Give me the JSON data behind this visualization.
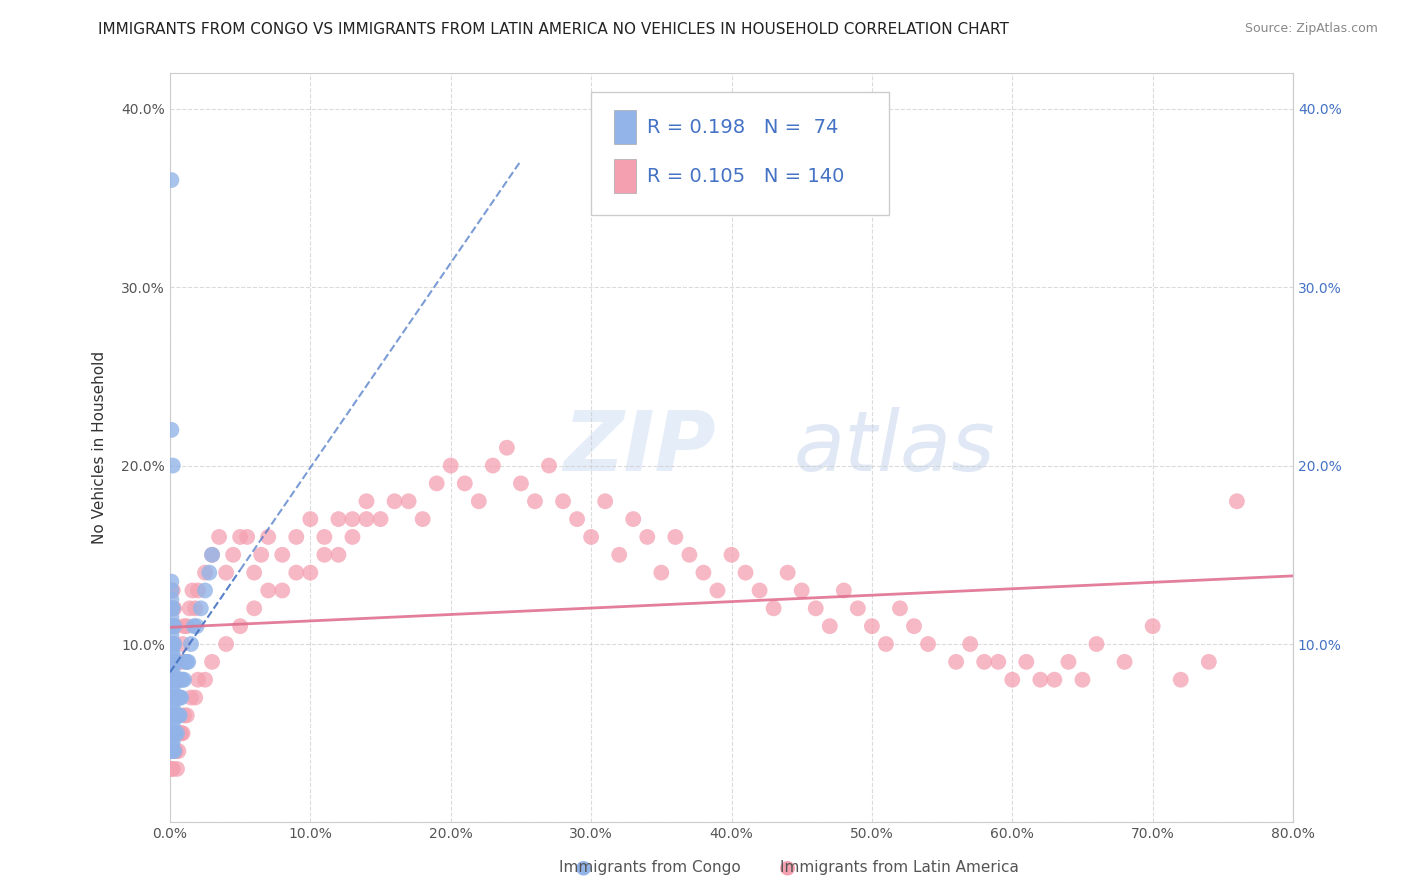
{
  "title": "IMMIGRANTS FROM CONGO VS IMMIGRANTS FROM LATIN AMERICA NO VEHICLES IN HOUSEHOLD CORRELATION CHART",
  "source": "Source: ZipAtlas.com",
  "xlabel_bottom": [
    "Immigrants from Congo",
    "Immigrants from Latin America"
  ],
  "ylabel": "No Vehicles in Household",
  "xlim": [
    0.0,
    0.8
  ],
  "ylim": [
    0.0,
    0.42
  ],
  "xticks": [
    0.0,
    0.1,
    0.2,
    0.3,
    0.4,
    0.5,
    0.6,
    0.7,
    0.8
  ],
  "yticks": [
    0.0,
    0.1,
    0.2,
    0.3,
    0.4
  ],
  "xtick_labels": [
    "0.0%",
    "10.0%",
    "20.0%",
    "30.0%",
    "40.0%",
    "50.0%",
    "60.0%",
    "70.0%",
    "80.0%"
  ],
  "ytick_labels": [
    "",
    "10.0%",
    "20.0%",
    "30.0%",
    "40.0%"
  ],
  "congo_color": "#92b4e8",
  "latin_color": "#f4a0b0",
  "congo_line_color": "#4472c4",
  "latin_line_color": "#e07090",
  "congo_R": 0.198,
  "congo_N": 74,
  "latin_R": 0.105,
  "latin_N": 140,
  "watermark_text": "ZIPatlas",
  "background_color": "#ffffff",
  "grid_color": "#cccccc",
  "title_fontsize": 11,
  "axis_label_fontsize": 11,
  "tick_fontsize": 10,
  "congo_scatter_x": [
    0.001,
    0.001,
    0.001,
    0.001,
    0.001,
    0.001,
    0.001,
    0.001,
    0.001,
    0.001,
    0.001,
    0.001,
    0.001,
    0.001,
    0.001,
    0.001,
    0.001,
    0.001,
    0.001,
    0.001,
    0.002,
    0.002,
    0.002,
    0.002,
    0.002,
    0.002,
    0.002,
    0.002,
    0.002,
    0.002,
    0.002,
    0.002,
    0.002,
    0.002,
    0.002,
    0.003,
    0.003,
    0.003,
    0.003,
    0.003,
    0.003,
    0.003,
    0.003,
    0.004,
    0.004,
    0.004,
    0.004,
    0.004,
    0.005,
    0.005,
    0.005,
    0.005,
    0.006,
    0.006,
    0.006,
    0.007,
    0.007,
    0.008,
    0.008,
    0.009,
    0.01,
    0.011,
    0.012,
    0.013,
    0.015,
    0.017,
    0.019,
    0.022,
    0.025,
    0.028,
    0.03,
    0.001,
    0.001,
    0.002
  ],
  "congo_scatter_y": [
    0.04,
    0.045,
    0.05,
    0.055,
    0.06,
    0.065,
    0.07,
    0.075,
    0.08,
    0.085,
    0.09,
    0.095,
    0.1,
    0.105,
    0.11,
    0.115,
    0.12,
    0.125,
    0.13,
    0.135,
    0.04,
    0.045,
    0.05,
    0.055,
    0.06,
    0.065,
    0.07,
    0.075,
    0.08,
    0.085,
    0.09,
    0.095,
    0.1,
    0.11,
    0.12,
    0.04,
    0.05,
    0.06,
    0.07,
    0.08,
    0.09,
    0.1,
    0.11,
    0.05,
    0.06,
    0.07,
    0.08,
    0.09,
    0.05,
    0.06,
    0.07,
    0.08,
    0.06,
    0.07,
    0.08,
    0.06,
    0.07,
    0.07,
    0.08,
    0.08,
    0.08,
    0.09,
    0.09,
    0.09,
    0.1,
    0.11,
    0.11,
    0.12,
    0.13,
    0.14,
    0.15,
    0.22,
    0.36,
    0.2
  ],
  "latin_scatter_x": [
    0.001,
    0.001,
    0.001,
    0.001,
    0.001,
    0.001,
    0.001,
    0.001,
    0.001,
    0.001,
    0.002,
    0.002,
    0.002,
    0.002,
    0.002,
    0.002,
    0.002,
    0.002,
    0.002,
    0.002,
    0.003,
    0.003,
    0.003,
    0.003,
    0.003,
    0.004,
    0.004,
    0.004,
    0.005,
    0.005,
    0.006,
    0.007,
    0.008,
    0.009,
    0.01,
    0.012,
    0.014,
    0.016,
    0.018,
    0.02,
    0.025,
    0.03,
    0.035,
    0.04,
    0.045,
    0.05,
    0.055,
    0.06,
    0.065,
    0.07,
    0.08,
    0.09,
    0.1,
    0.11,
    0.12,
    0.13,
    0.14,
    0.15,
    0.16,
    0.17,
    0.18,
    0.19,
    0.2,
    0.21,
    0.22,
    0.23,
    0.24,
    0.25,
    0.26,
    0.27,
    0.28,
    0.29,
    0.3,
    0.31,
    0.32,
    0.33,
    0.34,
    0.35,
    0.36,
    0.37,
    0.38,
    0.39,
    0.4,
    0.41,
    0.42,
    0.43,
    0.44,
    0.45,
    0.46,
    0.47,
    0.48,
    0.49,
    0.5,
    0.51,
    0.52,
    0.53,
    0.54,
    0.56,
    0.57,
    0.58,
    0.59,
    0.6,
    0.61,
    0.62,
    0.63,
    0.64,
    0.65,
    0.66,
    0.68,
    0.7,
    0.72,
    0.74,
    0.76,
    0.001,
    0.002,
    0.003,
    0.004,
    0.005,
    0.006,
    0.007,
    0.008,
    0.009,
    0.01,
    0.012,
    0.015,
    0.018,
    0.02,
    0.025,
    0.03,
    0.04,
    0.05,
    0.06,
    0.07,
    0.08,
    0.09,
    0.1,
    0.11,
    0.12,
    0.13,
    0.14
  ],
  "latin_scatter_y": [
    0.04,
    0.05,
    0.06,
    0.07,
    0.08,
    0.09,
    0.1,
    0.11,
    0.12,
    0.13,
    0.04,
    0.05,
    0.06,
    0.07,
    0.08,
    0.09,
    0.1,
    0.11,
    0.12,
    0.13,
    0.04,
    0.06,
    0.08,
    0.1,
    0.12,
    0.05,
    0.08,
    0.11,
    0.06,
    0.09,
    0.07,
    0.08,
    0.09,
    0.1,
    0.11,
    0.11,
    0.12,
    0.13,
    0.12,
    0.13,
    0.14,
    0.15,
    0.16,
    0.14,
    0.15,
    0.16,
    0.16,
    0.14,
    0.15,
    0.16,
    0.15,
    0.16,
    0.17,
    0.16,
    0.17,
    0.17,
    0.18,
    0.17,
    0.18,
    0.18,
    0.17,
    0.19,
    0.2,
    0.19,
    0.18,
    0.2,
    0.21,
    0.19,
    0.18,
    0.2,
    0.18,
    0.17,
    0.16,
    0.18,
    0.15,
    0.17,
    0.16,
    0.14,
    0.16,
    0.15,
    0.14,
    0.13,
    0.15,
    0.14,
    0.13,
    0.12,
    0.14,
    0.13,
    0.12,
    0.11,
    0.13,
    0.12,
    0.11,
    0.1,
    0.12,
    0.11,
    0.1,
    0.09,
    0.1,
    0.09,
    0.09,
    0.08,
    0.09,
    0.08,
    0.08,
    0.09,
    0.08,
    0.1,
    0.09,
    0.11,
    0.08,
    0.09,
    0.18,
    0.03,
    0.03,
    0.04,
    0.04,
    0.03,
    0.04,
    0.05,
    0.05,
    0.05,
    0.06,
    0.06,
    0.07,
    0.07,
    0.08,
    0.08,
    0.09,
    0.1,
    0.11,
    0.12,
    0.13,
    0.13,
    0.14,
    0.14,
    0.15,
    0.15,
    0.16,
    0.17
  ]
}
